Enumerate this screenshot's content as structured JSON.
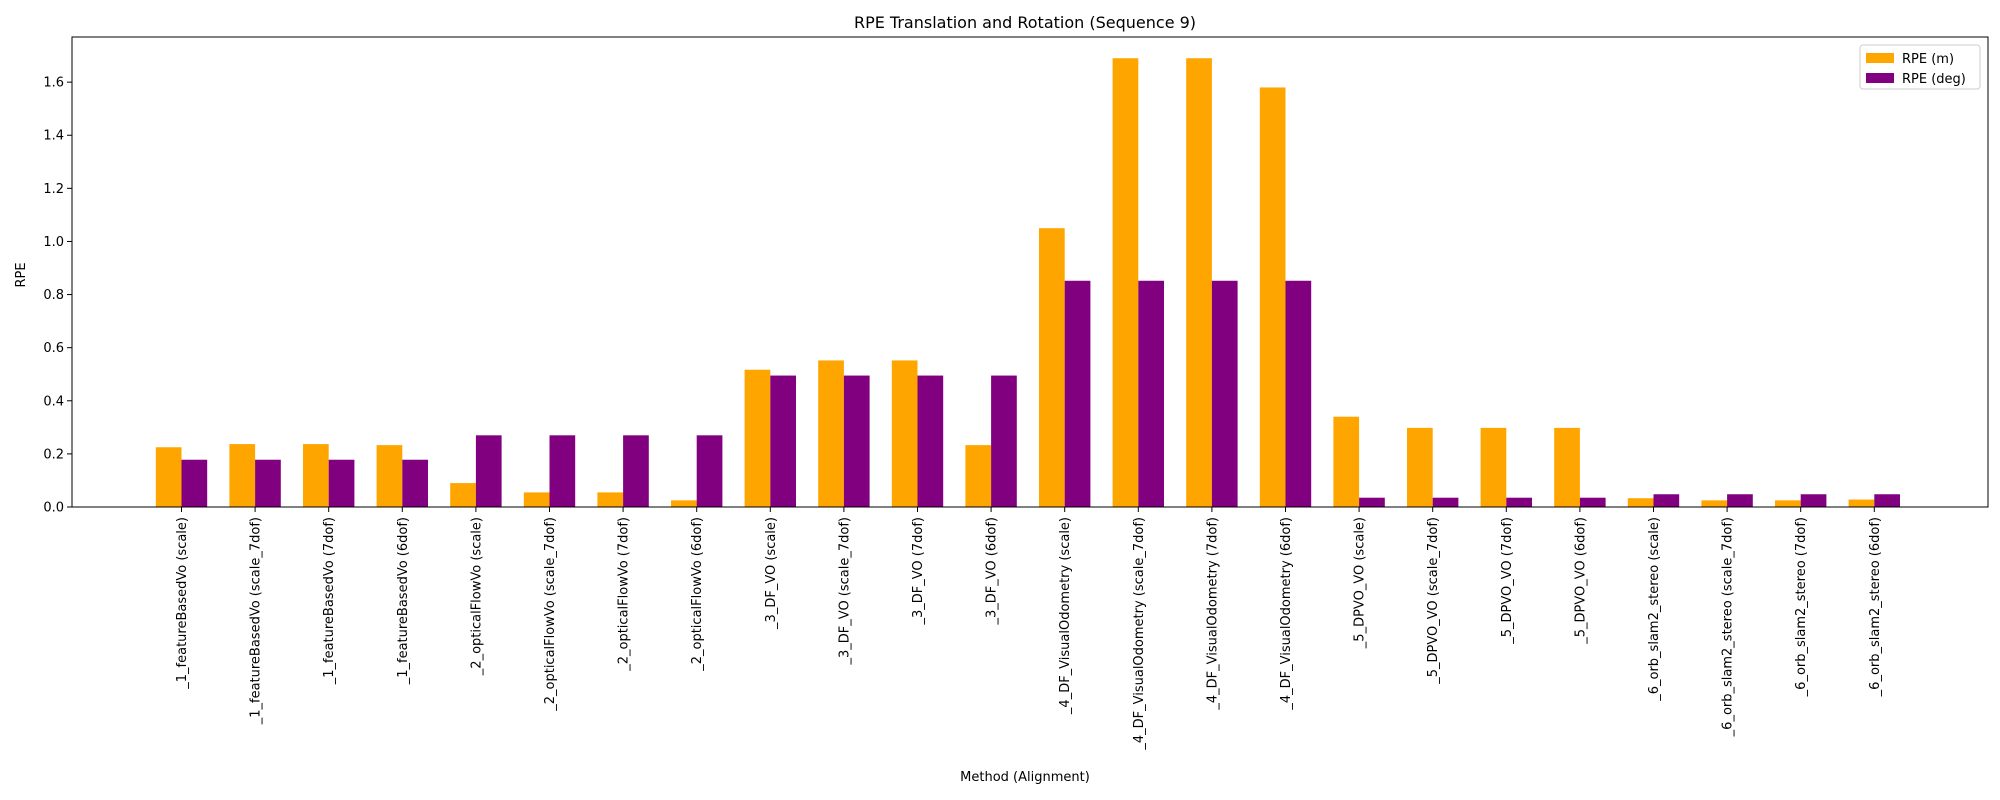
{
  "chart_data": {
    "type": "bar",
    "title": "RPE Translation and Rotation (Sequence 9)",
    "xlabel": "Method (Alignment)",
    "ylabel": "RPE",
    "ylim": [
      0,
      1.77
    ],
    "yticks": [
      0.0,
      0.2,
      0.4,
      0.6,
      0.8,
      1.0,
      1.2,
      1.4,
      1.6
    ],
    "ytick_labels": [
      "0.0",
      "0.2",
      "0.4",
      "0.6",
      "0.8",
      "1.0",
      "1.2",
      "1.4",
      "1.6"
    ],
    "legend_position": "top-right",
    "grid": false,
    "categories": [
      "_1_featureBasedVo (scale)",
      "_1_featureBasedVo (scale_7dof)",
      "_1_featureBasedVo (7dof)",
      "_1_featureBasedVo (6dof)",
      "_2_opticalFlowVo (scale)",
      "_2_opticalFlowVo (scale_7dof)",
      "_2_opticalFlowVo (7dof)",
      "_2_opticalFlowVo (6dof)",
      "_3_DF_VO (scale)",
      "_3_DF_VO (scale_7dof)",
      "_3_DF_VO (7dof)",
      "_3_DF_VO (6dof)",
      "_4_DF_VisualOdometry (scale)",
      "_4_DF_VisualOdometry (scale_7dof)",
      "_4_DF_VisualOdometry (7dof)",
      "_4_DF_VisualOdometry (6dof)",
      "_5_DPVO_VO (scale)",
      "_5_DPVO_VO (scale_7dof)",
      "_5_DPVO_VO (7dof)",
      "_5_DPVO_VO (6dof)",
      "_6_orb_slam2_stereo (scale)",
      "_6_orb_slam2_stereo (scale_7dof)",
      "_6_orb_slam2_stereo (7dof)",
      "_6_orb_slam2_stereo (6dof)"
    ],
    "series": [
      {
        "name": "RPE (m)",
        "color": "#FFA500",
        "values": [
          0.225,
          0.237,
          0.237,
          0.233,
          0.09,
          0.055,
          0.055,
          0.025,
          0.517,
          0.552,
          0.552,
          0.233,
          1.05,
          1.69,
          1.69,
          1.58,
          0.34,
          0.298,
          0.298,
          0.298,
          0.033,
          0.025,
          0.025,
          0.028
        ]
      },
      {
        "name": "RPE (deg)",
        "color": "#800080",
        "values": [
          0.178,
          0.178,
          0.178,
          0.178,
          0.27,
          0.27,
          0.27,
          0.27,
          0.495,
          0.495,
          0.495,
          0.495,
          0.852,
          0.852,
          0.852,
          0.852,
          0.035,
          0.035,
          0.035,
          0.035,
          0.048,
          0.048,
          0.048,
          0.048
        ]
      }
    ]
  }
}
